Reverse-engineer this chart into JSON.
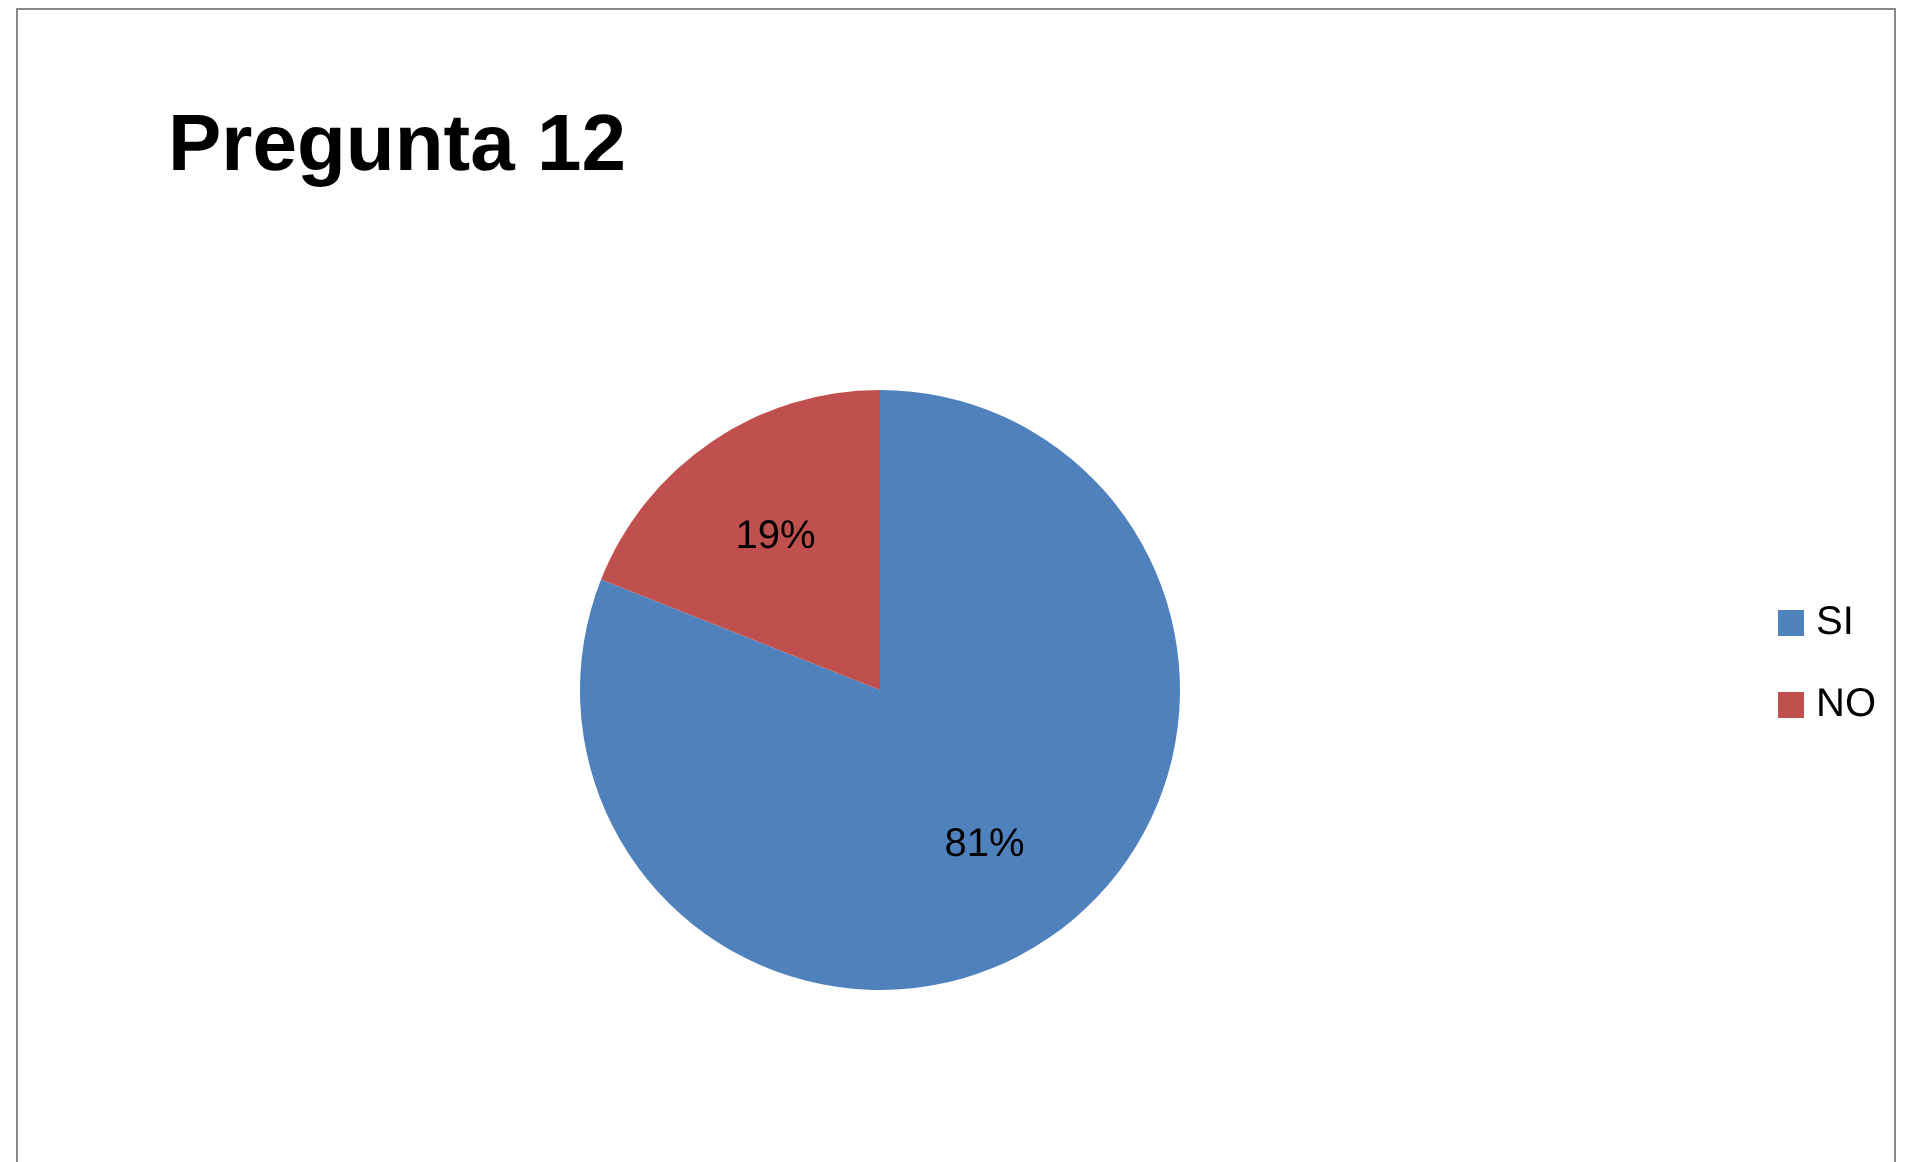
{
  "chart_data": {
    "type": "pie",
    "title": "Pregunta 12",
    "categories": [
      "SI",
      "NO"
    ],
    "values": [
      81,
      19
    ],
    "colors": [
      "#4f81bd",
      "#c0504d"
    ],
    "value_labels": [
      "81%",
      "19%"
    ],
    "legend": "right"
  }
}
